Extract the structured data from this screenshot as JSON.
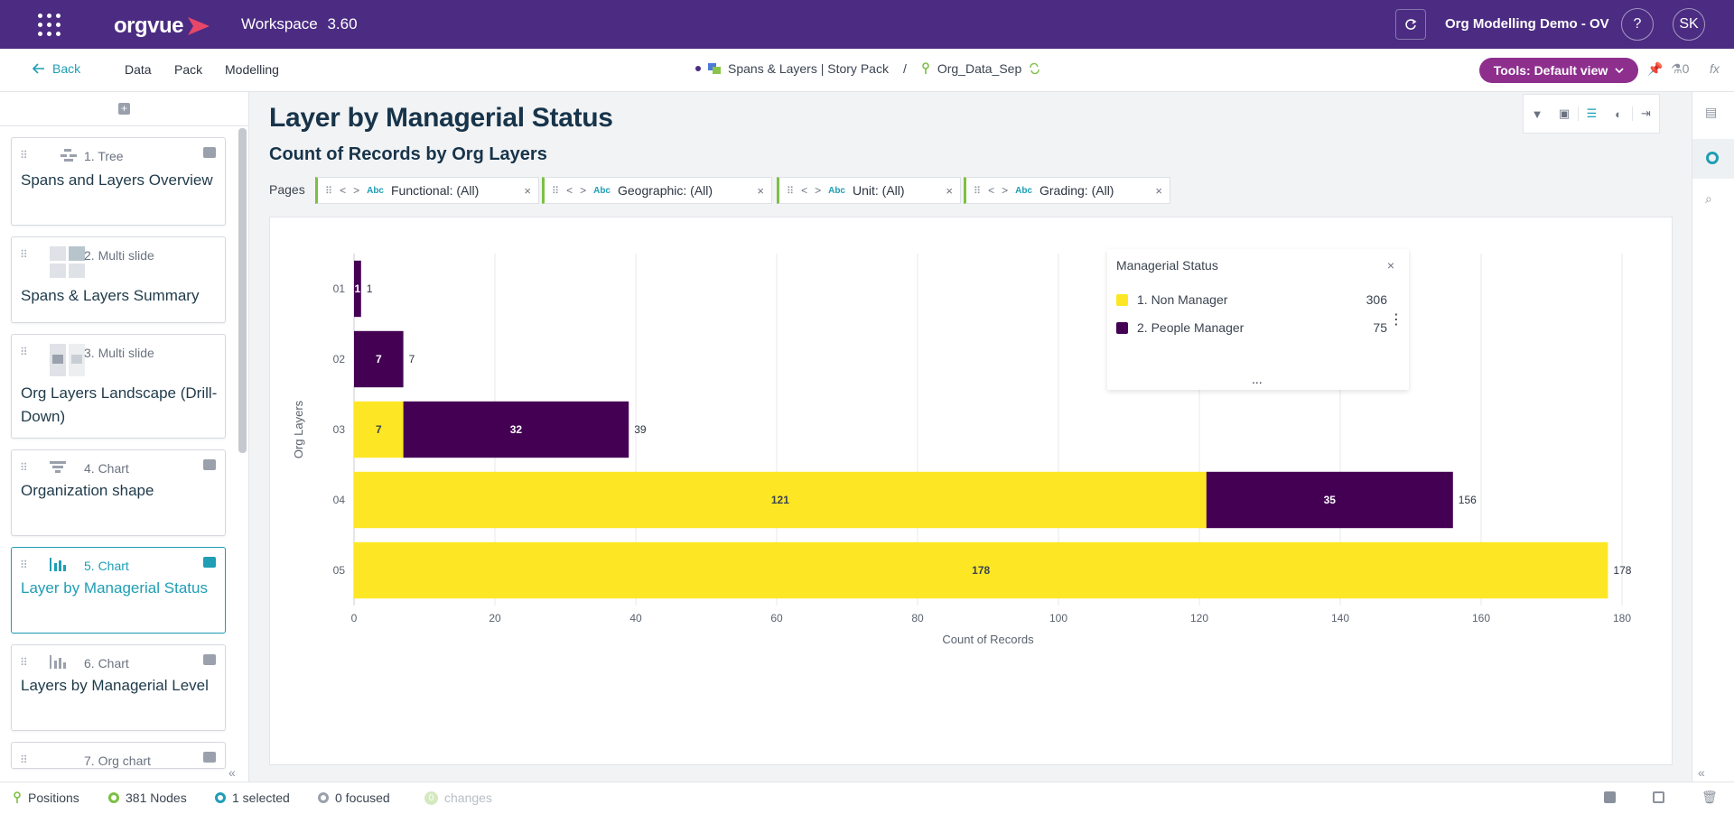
{
  "topbar": {
    "logo_text": "orgvue",
    "workspace_label": "Workspace",
    "version": "3.60",
    "org_name": "Org Modelling Demo - OV",
    "help_label": "?",
    "user_initials": "SK"
  },
  "navbar": {
    "back_label": "Back",
    "links": [
      "Data",
      "Pack",
      "Modelling"
    ],
    "breadcrumb_pack": "Spans & Layers | Story Pack",
    "breadcrumb_sep": "/",
    "breadcrumb_dataset": "Org_Data_Sep",
    "tools_label": "Tools: Default view",
    "alert_count": "0",
    "fx_label": "fx"
  },
  "sidebar": {
    "cards": [
      {
        "kind": "1. Tree",
        "title": "Spans and Layers Overview"
      },
      {
        "kind": "2. Multi slide",
        "title": "Spans & Layers Summary"
      },
      {
        "kind": "3. Multi slide",
        "title": "Org Layers Landscape (Drill-Down)"
      },
      {
        "kind": "4. Chart",
        "title": "Organization shape"
      },
      {
        "kind": "5. Chart",
        "title": "Layer by Managerial Status"
      },
      {
        "kind": "6. Chart",
        "title": "Layers by Managerial Level"
      },
      {
        "kind": "7. Org chart",
        "title": ""
      }
    ]
  },
  "page": {
    "title": "Layer by Managerial Status",
    "subtitle": "Count of Records by Org Layers",
    "pages_label": "Pages",
    "filters": [
      {
        "type": "Abc",
        "label": "Functional: (All)"
      },
      {
        "type": "Abc",
        "label": "Geographic: (All)"
      },
      {
        "type": "Abc",
        "label": "Unit: (All)"
      },
      {
        "type": "Abc",
        "label": "Grading: (All)"
      }
    ]
  },
  "legend": {
    "title": "Managerial Status",
    "close": "×",
    "more": "...",
    "items": [
      {
        "label": "1. Non Manager",
        "value": "306",
        "color": "#fde725"
      },
      {
        "label": "2. People Manager",
        "value": "75",
        "color": "#440154"
      }
    ]
  },
  "chart_data": {
    "type": "bar",
    "orientation": "horizontal",
    "stacked": true,
    "categories": [
      "01",
      "02",
      "03",
      "04",
      "05"
    ],
    "series": [
      {
        "name": "1. Non Manager",
        "color": "#fde725",
        "values": [
          0,
          0,
          7,
          121,
          178
        ]
      },
      {
        "name": "2. People Manager",
        "color": "#440154",
        "values": [
          1,
          7,
          32,
          35,
          0
        ]
      }
    ],
    "totals": [
      1,
      7,
      39,
      156,
      178
    ],
    "xlabel": "Count of Records",
    "ylabel": "Org Layers",
    "xlim": [
      0,
      180
    ],
    "xticks": [
      0,
      20,
      40,
      60,
      80,
      100,
      120,
      140,
      160,
      180
    ],
    "grid": true
  },
  "statusbar": {
    "positions": "Positions",
    "nodes": "381 Nodes",
    "selected": "1 selected",
    "focused": "0 focused",
    "changes_count": "0",
    "changes": "changes"
  }
}
